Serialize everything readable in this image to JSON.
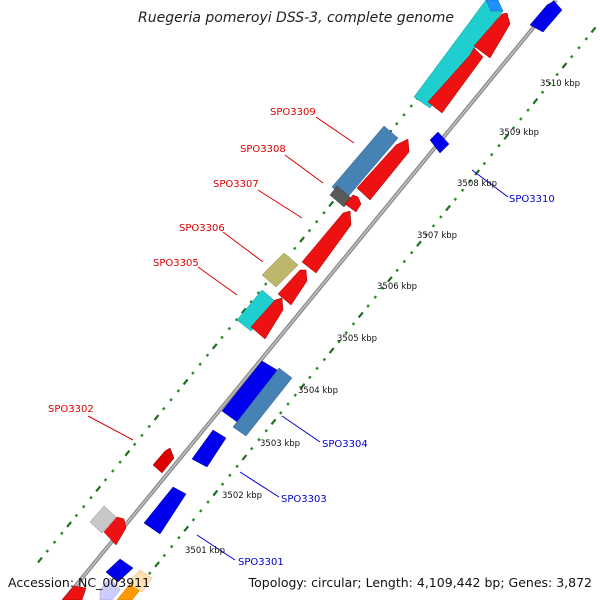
{
  "title": "Ruegeria pomeroyi DSS-3, complete genome",
  "footer": {
    "accession": "Accession: NC_003911",
    "summary": "Topology: circular; Length: 4,109,442 bp; Genes: 3,872"
  },
  "colors": {
    "backbone": "#888888",
    "minor_tick": "#2a8a2a",
    "major_tick": "#1e6e1e",
    "label_left": "#dd0000",
    "label_right": "#0000cc"
  },
  "ticks": [
    {
      "label": "3501 kbp"
    },
    {
      "label": "3502 kbp"
    },
    {
      "label": "3503 kbp"
    },
    {
      "label": "3504 kbp"
    },
    {
      "label": "3505 kbp"
    },
    {
      "label": "3506 kbp"
    },
    {
      "label": "3507 kbp"
    },
    {
      "label": "3508 kbp"
    },
    {
      "label": "3509 kbp"
    },
    {
      "label": "3510 kbp"
    }
  ],
  "genes_left": [
    {
      "label": "SPO3302"
    },
    {
      "label": "SPO3305"
    },
    {
      "label": "SPO3306"
    },
    {
      "label": "SPO3307"
    },
    {
      "label": "SPO3308"
    },
    {
      "label": "SPO3309"
    }
  ],
  "genes_right": [
    {
      "label": "SPO3301"
    },
    {
      "label": "SPO3303"
    },
    {
      "label": "SPO3304"
    },
    {
      "label": "SPO3310"
    }
  ]
}
